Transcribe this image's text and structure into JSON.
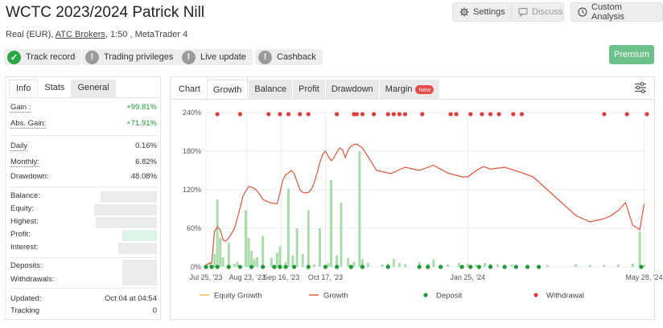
{
  "header": {
    "title": "WCTC 2023/2024 Patrick Nill",
    "account_type": "Real (EUR),",
    "broker": "ATC Brokers",
    "leverage_platform": ", 1:50 , MetaTrader 4",
    "settings_label": "Settings",
    "discuss_label": "Discuss",
    "custom_analysis_label": "Custom Analysis",
    "premium_label": "Premium"
  },
  "badges": [
    {
      "label": "Track record",
      "icon": "check-icon"
    },
    {
      "label": "Trading privileges",
      "icon": "exclamation-icon"
    },
    {
      "label": "Live update",
      "icon": "exclamation-icon"
    },
    {
      "label": "Cashback",
      "icon": "exclamation-icon"
    }
  ],
  "left_panel": {
    "tabs": [
      "Info",
      "Stats",
      "General"
    ],
    "gain_label": "Gain :",
    "gain_value": "+99.81%",
    "abs_gain_label": "Abs. Gain:",
    "abs_gain_value": "+71.91%",
    "daily_label": "Daily",
    "daily_value": "0.16%",
    "monthly_label": "Monthly:",
    "monthly_value": "6.82%",
    "drawdown_label": "Drawdown:",
    "drawdown_value": "48.08%",
    "balance_label": "Balance:",
    "equity_label": "Equity:",
    "highest_label": "Highest:",
    "profit_label": "Profit:",
    "interest_label": "Interest:",
    "deposits_label": "Deposits:",
    "withdrawals_label": "Withdrawals:",
    "updated_label": "Updated:",
    "updated_value": "Oct 04 at 04:54",
    "tracking_label": "Tracking",
    "tracking_value": "0"
  },
  "right_panel": {
    "tabs": [
      "Chart",
      "Growth",
      "Balance",
      "Profit",
      "Drawdown",
      "Margin"
    ],
    "new_badge": "New"
  },
  "colors": {
    "growth_line": "#e0553a",
    "equity_line": "#f0b54a",
    "bar": "#a8dcaa",
    "deposit": "#1f9a3a",
    "withdrawal": "#e33b3b",
    "accent_green": "#6cc28a"
  },
  "chart_data": {
    "type": "line",
    "ylim": [
      0,
      240
    ],
    "y_ticks": [
      "0%",
      "60%",
      "120%",
      "180%",
      "240%"
    ],
    "y_tick_values": [
      0,
      60,
      120,
      180,
      240
    ],
    "x_ticks": [
      "Jul 25, '23",
      "Aug 23, '23",
      "Sep 16, '23",
      "Oct 17, '23",
      "Jan 25, '24",
      "May 28, '24"
    ],
    "x_tick_values": [
      0,
      29,
      53,
      84,
      184,
      308
    ],
    "xlim": [
      0,
      310
    ],
    "legend": [
      "Equity Growth",
      "Growth",
      "Deposit",
      "Withdrawal"
    ],
    "growth": {
      "x": [
        0,
        2,
        4,
        6,
        8,
        10,
        12,
        14,
        16,
        18,
        20,
        22,
        24,
        26,
        28,
        30,
        32,
        34,
        36,
        38,
        40,
        45,
        50,
        52,
        54,
        56,
        58,
        60,
        62,
        64,
        66,
        68,
        70,
        72,
        74,
        76,
        78,
        80,
        82,
        84,
        86,
        88,
        90,
        92,
        94,
        96,
        98,
        100,
        102,
        104,
        106,
        108,
        110,
        120,
        130,
        140,
        150,
        160,
        170,
        180,
        184,
        190,
        195,
        200,
        210,
        220,
        230,
        240,
        250,
        260,
        270,
        280,
        285,
        290,
        295,
        300,
        305,
        308
      ],
      "y": [
        3,
        5,
        6,
        55,
        62,
        58,
        42,
        40,
        45,
        52,
        60,
        75,
        92,
        110,
        118,
        125,
        124,
        122,
        118,
        112,
        105,
        100,
        98,
        115,
        135,
        143,
        146,
        150,
        145,
        133,
        120,
        116,
        115,
        116,
        120,
        130,
        145,
        162,
        175,
        180,
        172,
        165,
        170,
        178,
        185,
        182,
        170,
        182,
        188,
        190,
        191,
        188,
        185,
        150,
        145,
        155,
        150,
        158,
        146,
        140,
        140,
        150,
        156,
        152,
        155,
        148,
        140,
        120,
        100,
        80,
        70,
        75,
        80,
        88,
        100,
        65,
        58,
        98
      ]
    },
    "bars": {
      "x": [
        3,
        6,
        8,
        10,
        12,
        16,
        20,
        22,
        28,
        30,
        32,
        34,
        36,
        40,
        46,
        50,
        52,
        56,
        58,
        61,
        64,
        68,
        72,
        76,
        80,
        86,
        88,
        92,
        95,
        100,
        104,
        108,
        110,
        114,
        124,
        128,
        132,
        136,
        140,
        150,
        156,
        160,
        170,
        178,
        184,
        190,
        196,
        200,
        205,
        210,
        215,
        240,
        260,
        270,
        280,
        290,
        300,
        305,
        308
      ],
      "y": [
        8,
        20,
        105,
        45,
        15,
        38,
        5,
        8,
        88,
        45,
        25,
        12,
        15,
        48,
        14,
        22,
        32,
        8,
        122,
        18,
        60,
        20,
        88,
        4,
        60,
        6,
        135,
        18,
        100,
        14,
        8,
        180,
        12,
        6,
        4,
        5,
        12,
        6,
        4,
        8,
        5,
        12,
        4,
        6,
        5,
        4,
        6,
        5,
        4,
        3,
        4,
        3,
        4,
        3,
        3,
        4,
        5,
        55,
        3
      ]
    },
    "deposits_x": [
      0,
      4,
      8,
      16,
      24,
      32,
      40,
      48,
      52,
      56,
      62,
      72,
      84,
      92,
      102,
      110,
      128,
      150,
      156,
      165,
      180,
      186,
      192,
      200,
      210,
      218,
      226,
      234,
      306
    ],
    "withdrawals_x": [
      8,
      24,
      44,
      52,
      58,
      66,
      72,
      92,
      104,
      106,
      110,
      118,
      128,
      132,
      136,
      140,
      152,
      172,
      176,
      186,
      194,
      200,
      206,
      216,
      222,
      280,
      296,
      310
    ]
  }
}
